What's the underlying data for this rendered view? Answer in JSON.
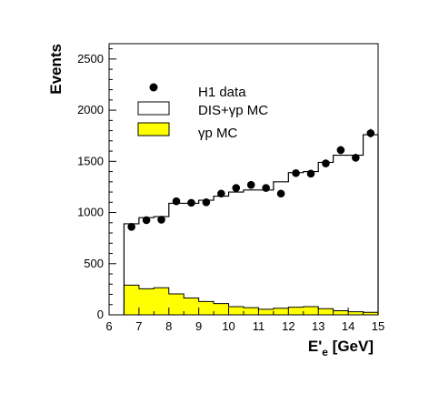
{
  "chart_data": {
    "type": "bar",
    "title": "",
    "xlabel": "E'e [GeV]",
    "xlabel_parts": {
      "main": "E",
      "prime": "'",
      "sub": "e",
      "unit": " [GeV]"
    },
    "ylabel": "Events",
    "xlim": [
      6,
      15
    ],
    "ylim": [
      0,
      2650
    ],
    "xticks": [
      6,
      7,
      8,
      9,
      10,
      11,
      12,
      13,
      14,
      15
    ],
    "yticks": [
      0,
      500,
      1000,
      1500,
      2000,
      2500
    ],
    "legend_placement": "top-left",
    "grid": false,
    "bin_edges": [
      6.5,
      7.0,
      7.5,
      8.0,
      8.5,
      9.0,
      9.5,
      10.0,
      10.5,
      11.0,
      11.5,
      12.0,
      12.5,
      13.0,
      13.5,
      14.0,
      14.5,
      15.0
    ],
    "series": [
      {
        "name": "H1 data",
        "kind": "points",
        "color": "#000000",
        "values": [
          860,
          925,
          930,
          1110,
          1095,
          1100,
          1185,
          1240,
          1270,
          1240,
          1185,
          1385,
          1380,
          1480,
          1610,
          1535,
          1775
        ],
        "errors": [
          30,
          30,
          30,
          33,
          33,
          33,
          35,
          35,
          36,
          35,
          35,
          37,
          37,
          38,
          40,
          39,
          42
        ]
      },
      {
        "name": "DIS+γp MC",
        "kind": "step",
        "color": "#000000",
        "fill": "#ffffff",
        "values": [
          890,
          950,
          960,
          1090,
          1090,
          1120,
          1160,
          1200,
          1220,
          1220,
          1300,
          1390,
          1400,
          1490,
          1560,
          1560,
          1760
        ]
      },
      {
        "name": "γp MC",
        "kind": "filled-step",
        "color": "#000000",
        "fill": "#ffff00",
        "values": [
          290,
          255,
          265,
          205,
          165,
          130,
          110,
          80,
          70,
          55,
          65,
          75,
          80,
          60,
          40,
          30,
          25
        ]
      }
    ]
  }
}
